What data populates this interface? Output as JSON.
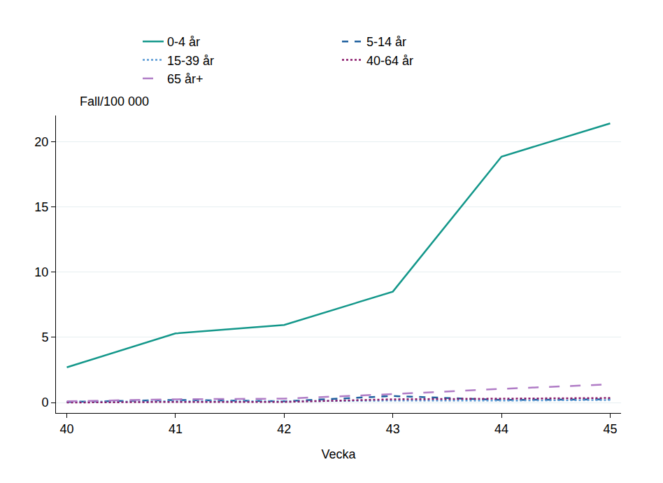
{
  "chart_data": {
    "type": "line",
    "x_label": "Vecka",
    "y_label": "Fall/100 000",
    "x": [
      40,
      41,
      42,
      43,
      44,
      45
    ],
    "series": [
      {
        "name": "0-4 år",
        "color": "#13978a",
        "line_style": "solid",
        "values": [
          2.7,
          5.3,
          5.95,
          8.5,
          18.85,
          21.4
        ]
      },
      {
        "name": "5-14 år",
        "color": "#1d5f9e",
        "line_style": "dash",
        "values": [
          0.05,
          0.2,
          0.1,
          0.5,
          0.2,
          0.25
        ]
      },
      {
        "name": "15-39 år",
        "color": "#5b9bd5",
        "line_style": "dot",
        "values": [
          0.05,
          0.1,
          0.1,
          0.15,
          0.15,
          0.2
        ]
      },
      {
        "name": "40-64 år",
        "color": "#8b1a6b",
        "line_style": "dot",
        "values": [
          0.0,
          0.05,
          0.05,
          0.25,
          0.3,
          0.35
        ]
      },
      {
        "name": "65 år+",
        "color": "#b07cc6",
        "line_style": "longdash",
        "values": [
          0.1,
          0.25,
          0.3,
          0.65,
          1.05,
          1.4
        ]
      }
    ],
    "xlim": [
      39.9,
      45.1
    ],
    "xticks": [
      40,
      41,
      42,
      43,
      44,
      45
    ],
    "ylim": [
      -0.8,
      22
    ],
    "yticks": [
      0,
      5,
      10,
      15,
      20
    ],
    "grid": true,
    "legend": "top"
  }
}
